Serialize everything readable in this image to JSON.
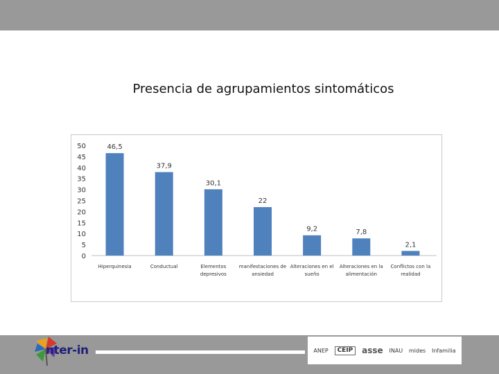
{
  "page": {
    "title": "Presencia de agrupamientos sintomáticos"
  },
  "chart_data": {
    "type": "bar",
    "title": "",
    "xlabel": "",
    "ylabel": "",
    "categories": [
      [
        "Hiperquinesia"
      ],
      [
        "Conductual"
      ],
      [
        "Elementos",
        "depresivos"
      ],
      [
        "manifestaciones de",
        "ansiedad"
      ],
      [
        "Alteraciones en el",
        "sueño"
      ],
      [
        "Alteraciones en la",
        "alimentación"
      ],
      [
        "Conflictos con la",
        "realidad"
      ]
    ],
    "values": [
      46.5,
      37.9,
      30.1,
      22,
      9.2,
      7.8,
      2.1
    ],
    "value_labels": [
      "46,5",
      "37,9",
      "30,1",
      "22",
      "9,2",
      "7,8",
      "2,1"
    ],
    "ylim": [
      0,
      50
    ],
    "yticks": [
      0,
      5,
      10,
      15,
      20,
      25,
      30,
      35,
      40,
      45,
      50
    ],
    "grid": false,
    "legend": "none",
    "bar_color": "#4f81bd"
  },
  "footer": {
    "brand": "nter-in",
    "sponsors": [
      "ANEP",
      "CEIP",
      "asse",
      "INAU",
      "mides",
      "Infamilia"
    ]
  }
}
